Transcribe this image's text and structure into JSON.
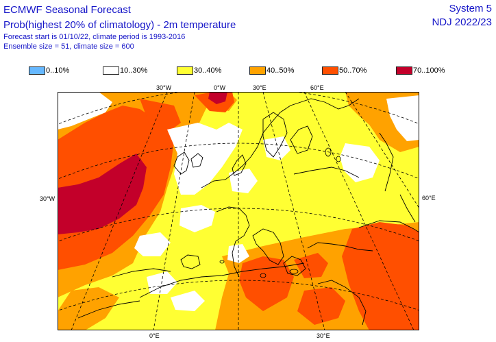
{
  "header": {
    "title": "ECMWF Seasonal Forecast",
    "subtitle": "Prob(highest 20% of climatology) - 2m temperature",
    "forecast_info": "Forecast start is 01/10/22, climate period is 1993-2016",
    "ensemble_info": "Ensemble size = 51, climate size = 600",
    "system": "System 5",
    "period": "NDJ 2022/23"
  },
  "legend": [
    {
      "label": "0..10%",
      "color": "#66b8ff"
    },
    {
      "label": "10..30%",
      "color": "#ffffff"
    },
    {
      "label": "30..40%",
      "color": "#ffff33"
    },
    {
      "label": "40..50%",
      "color": "#ffa200"
    },
    {
      "label": "50..70%",
      "color": "#ff4f00"
    },
    {
      "label": "70..100%",
      "color": "#c3002a"
    }
  ],
  "ticks": {
    "top_30w": "30°W",
    "top_0e": "0°W",
    "top_30e": "30°E",
    "top_60e": "60°E",
    "left_30w": "30°W",
    "right_60e": "60°E",
    "bottom_0e": "0°E",
    "bottom_30e": "30°E"
  },
  "colors": {
    "c10": "#ffffff",
    "c30": "#ffff33",
    "c40": "#ffa200",
    "c50": "#ff4f00",
    "c70": "#c3002a",
    "coast": "#000000",
    "grid": "#000000"
  }
}
